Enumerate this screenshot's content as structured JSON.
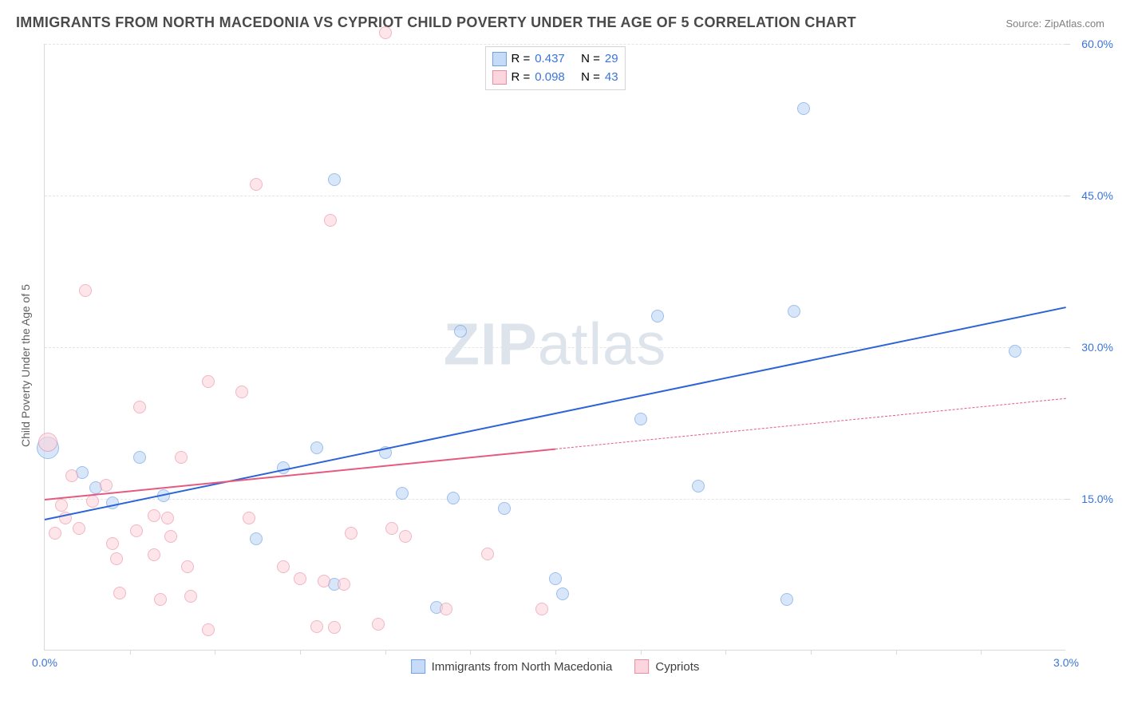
{
  "title": "IMMIGRANTS FROM NORTH MACEDONIA VS CYPRIOT CHILD POVERTY UNDER THE AGE OF 5 CORRELATION CHART",
  "source": "Source: ZipAtlas.com",
  "ylabel": "Child Poverty Under the Age of 5",
  "watermark_bold": "ZIP",
  "watermark_light": "atlas",
  "chart": {
    "type": "scatter",
    "xlim": [
      0.0,
      3.0
    ],
    "ylim": [
      0.0,
      60.0
    ],
    "x_ticks": [
      0.0,
      3.0
    ],
    "x_tick_labels": [
      "0.0%",
      "3.0%"
    ],
    "x_minor_tick_positions": [
      0.25,
      0.5,
      0.75,
      1.0,
      1.25,
      1.5,
      1.75,
      2.0,
      2.25,
      2.5,
      2.75
    ],
    "y_ticks": [
      15.0,
      30.0,
      45.0,
      60.0
    ],
    "y_tick_labels": [
      "15.0%",
      "30.0%",
      "45.0%",
      "60.0%"
    ],
    "grid_color": "#e4e4e4",
    "axis_color": "#d9d9d9",
    "background_color": "#ffffff",
    "title_fontsize": 18,
    "title_color": "#4a4a4a",
    "label_fontsize": 14,
    "label_color": "#606060",
    "tick_fontsize": 14,
    "tick_color": "#3a74d8"
  },
  "legend_top": {
    "r_label": "R =",
    "n_label": "N =",
    "r_color": "#3a74d8",
    "text_color": "#404040",
    "border_color": "#d4d4d4"
  },
  "legend_bottom": [
    {
      "label": "Immigrants from North Macedonia",
      "fill": "#c5dbf7",
      "stroke": "#6fa1e6"
    },
    {
      "label": "Cypriots",
      "fill": "#fcd6de",
      "stroke": "#e98ba1"
    }
  ],
  "series": [
    {
      "name": "Immigrants from North Macedonia",
      "marker_fill": "#c5dbf7",
      "marker_stroke": "#6fa1e6",
      "marker_opacity": 0.68,
      "marker_radius_default": 8,
      "trend_color": "#2c63d6",
      "trend_width": 2.5,
      "trend": {
        "x1": 0.0,
        "y1": 13.0,
        "x2": 3.0,
        "y2": 34.0,
        "solid_until_x": 3.0
      },
      "R": 0.437,
      "N": 29,
      "points": [
        {
          "x": 0.01,
          "y": 20.0,
          "r": 14
        },
        {
          "x": 0.11,
          "y": 17.5,
          "r": 8
        },
        {
          "x": 0.15,
          "y": 16.0,
          "r": 8
        },
        {
          "x": 0.2,
          "y": 14.5,
          "r": 8
        },
        {
          "x": 0.28,
          "y": 19.0,
          "r": 8
        },
        {
          "x": 0.35,
          "y": 15.2,
          "r": 8
        },
        {
          "x": 0.62,
          "y": 11.0,
          "r": 8
        },
        {
          "x": 0.7,
          "y": 18.0,
          "r": 8
        },
        {
          "x": 0.8,
          "y": 20.0,
          "r": 8
        },
        {
          "x": 0.85,
          "y": 46.5,
          "r": 8
        },
        {
          "x": 0.85,
          "y": 6.5,
          "r": 8
        },
        {
          "x": 1.0,
          "y": 19.5,
          "r": 8
        },
        {
          "x": 1.05,
          "y": 15.5,
          "r": 8
        },
        {
          "x": 1.15,
          "y": 4.2,
          "r": 8
        },
        {
          "x": 1.2,
          "y": 15.0,
          "r": 8
        },
        {
          "x": 1.22,
          "y": 31.5,
          "r": 8
        },
        {
          "x": 1.35,
          "y": 14.0,
          "r": 8
        },
        {
          "x": 1.5,
          "y": 7.0,
          "r": 8
        },
        {
          "x": 1.52,
          "y": 5.5,
          "r": 8
        },
        {
          "x": 1.75,
          "y": 22.8,
          "r": 8
        },
        {
          "x": 1.8,
          "y": 33.0,
          "r": 8
        },
        {
          "x": 1.92,
          "y": 16.2,
          "r": 8
        },
        {
          "x": 2.18,
          "y": 5.0,
          "r": 8
        },
        {
          "x": 2.2,
          "y": 33.5,
          "r": 8
        },
        {
          "x": 2.23,
          "y": 53.5,
          "r": 8
        },
        {
          "x": 2.85,
          "y": 29.5,
          "r": 8
        }
      ]
    },
    {
      "name": "Cypriots",
      "marker_fill": "#fcd6de",
      "marker_stroke": "#e98ba1",
      "marker_opacity": 0.62,
      "marker_radius_default": 8,
      "trend_color": "#e65a80",
      "trend_width": 2.2,
      "trend": {
        "x1": 0.0,
        "y1": 15.0,
        "x2": 3.0,
        "y2": 25.0,
        "solid_until_x": 1.5
      },
      "R": 0.098,
      "N": 43,
      "points": [
        {
          "x": 0.01,
          "y": 20.5,
          "r": 12
        },
        {
          "x": 0.03,
          "y": 11.5,
          "r": 8
        },
        {
          "x": 0.05,
          "y": 14.3,
          "r": 8
        },
        {
          "x": 0.06,
          "y": 13.0,
          "r": 8
        },
        {
          "x": 0.08,
          "y": 17.2,
          "r": 8
        },
        {
          "x": 0.1,
          "y": 12.0,
          "r": 8
        },
        {
          "x": 0.12,
          "y": 35.5,
          "r": 8
        },
        {
          "x": 0.14,
          "y": 14.7,
          "r": 8
        },
        {
          "x": 0.18,
          "y": 16.3,
          "r": 8
        },
        {
          "x": 0.2,
          "y": 10.5,
          "r": 8
        },
        {
          "x": 0.21,
          "y": 9.0,
          "r": 8
        },
        {
          "x": 0.22,
          "y": 5.6,
          "r": 8
        },
        {
          "x": 0.27,
          "y": 11.8,
          "r": 8
        },
        {
          "x": 0.28,
          "y": 24.0,
          "r": 8
        },
        {
          "x": 0.32,
          "y": 13.3,
          "r": 8
        },
        {
          "x": 0.32,
          "y": 9.4,
          "r": 8
        },
        {
          "x": 0.34,
          "y": 5.0,
          "r": 8
        },
        {
          "x": 0.36,
          "y": 13.0,
          "r": 8
        },
        {
          "x": 0.37,
          "y": 11.2,
          "r": 8
        },
        {
          "x": 0.4,
          "y": 19.0,
          "r": 8
        },
        {
          "x": 0.42,
          "y": 8.2,
          "r": 8
        },
        {
          "x": 0.43,
          "y": 5.3,
          "r": 8
        },
        {
          "x": 0.48,
          "y": 26.5,
          "r": 8
        },
        {
          "x": 0.48,
          "y": 2.0,
          "r": 8
        },
        {
          "x": 0.58,
          "y": 25.5,
          "r": 8
        },
        {
          "x": 0.6,
          "y": 13.0,
          "r": 8
        },
        {
          "x": 0.62,
          "y": 46.0,
          "r": 8
        },
        {
          "x": 0.7,
          "y": 8.2,
          "r": 8
        },
        {
          "x": 0.75,
          "y": 7.0,
          "r": 8
        },
        {
          "x": 0.8,
          "y": 2.3,
          "r": 8
        },
        {
          "x": 0.82,
          "y": 6.8,
          "r": 8
        },
        {
          "x": 0.84,
          "y": 42.5,
          "r": 8
        },
        {
          "x": 0.85,
          "y": 2.2,
          "r": 8
        },
        {
          "x": 0.88,
          "y": 6.5,
          "r": 8
        },
        {
          "x": 0.9,
          "y": 11.5,
          "r": 8
        },
        {
          "x": 0.98,
          "y": 2.5,
          "r": 8
        },
        {
          "x": 1.0,
          "y": 61.0,
          "r": 8
        },
        {
          "x": 1.02,
          "y": 12.0,
          "r": 8
        },
        {
          "x": 1.06,
          "y": 11.2,
          "r": 8
        },
        {
          "x": 1.18,
          "y": 4.0,
          "r": 8
        },
        {
          "x": 1.3,
          "y": 9.5,
          "r": 8
        },
        {
          "x": 1.46,
          "y": 4.0,
          "r": 8
        }
      ]
    }
  ]
}
